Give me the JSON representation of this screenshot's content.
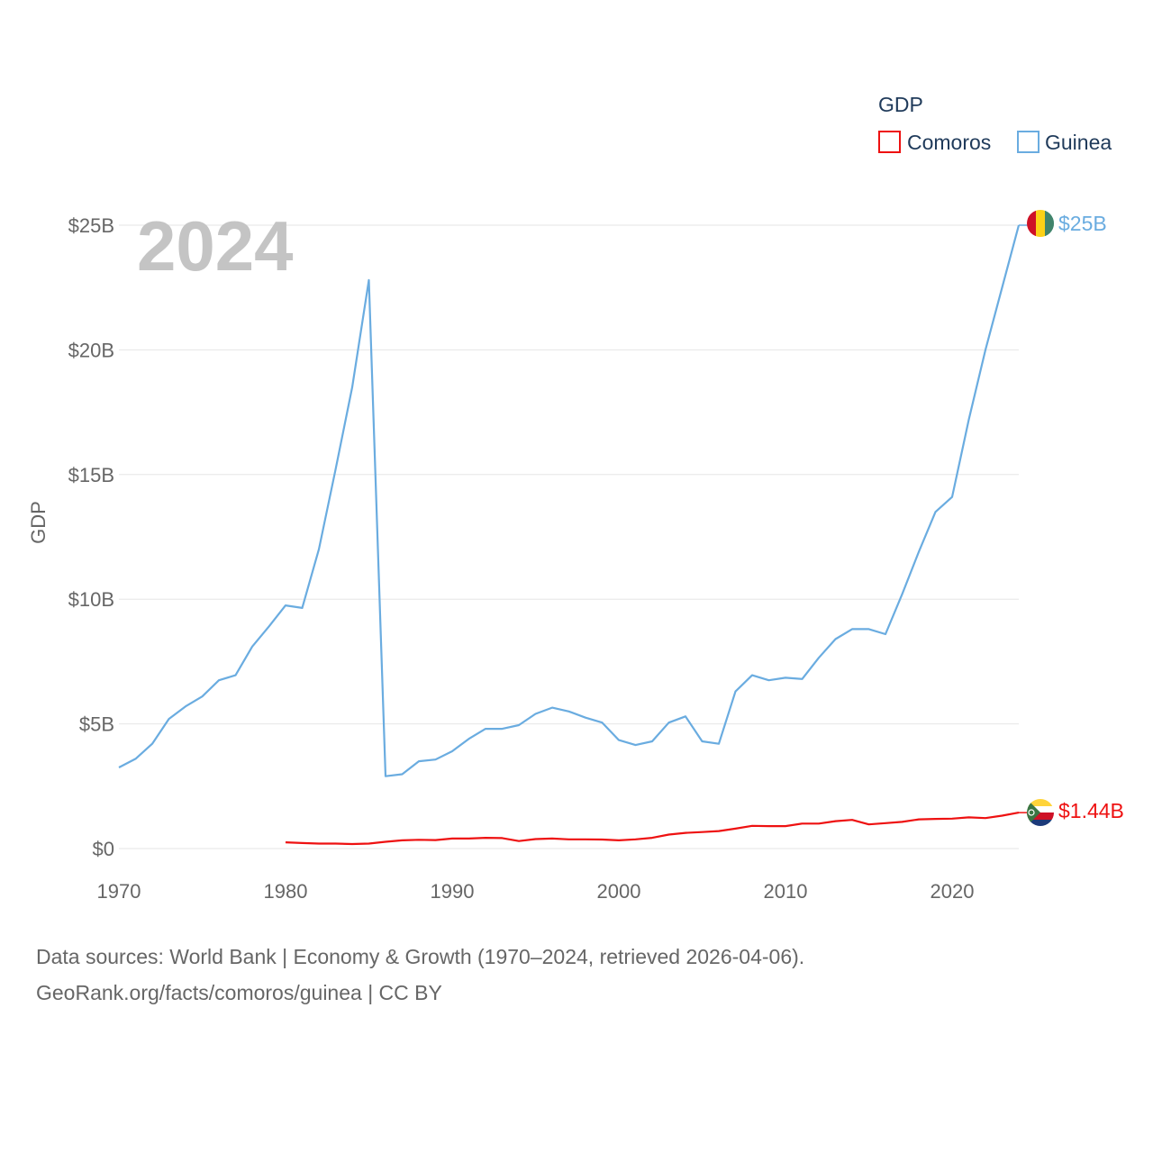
{
  "chart_data": {
    "type": "line",
    "legend_title": "GDP",
    "ylabel": "GDP",
    "year_label": "2024",
    "xlim": [
      1970,
      2024
    ],
    "ylim": [
      0,
      25
    ],
    "x_ticks": [
      1970,
      1980,
      1990,
      2000,
      2010,
      2020
    ],
    "x_tick_labels": [
      "1970",
      "1980",
      "1990",
      "2000",
      "2010",
      "2020"
    ],
    "y_ticks": [
      0,
      5,
      10,
      15,
      20,
      25
    ],
    "y_tick_labels": [
      "$0",
      "$5B",
      "$10B",
      "$15B",
      "$20B",
      "$25B"
    ],
    "legend_position": "top-right",
    "series": [
      {
        "name": "Comoros",
        "color": "#ee1111",
        "end_label": "$1.44B",
        "x": [
          1980,
          1981,
          1982,
          1983,
          1984,
          1985,
          1986,
          1987,
          1988,
          1989,
          1990,
          1991,
          1992,
          1993,
          1994,
          1995,
          1996,
          1997,
          1998,
          1999,
          2000,
          2001,
          2002,
          2003,
          2004,
          2005,
          2006,
          2007,
          2008,
          2009,
          2010,
          2011,
          2012,
          2013,
          2014,
          2015,
          2016,
          2017,
          2018,
          2019,
          2020,
          2021,
          2022,
          2023,
          2024
        ],
        "values": [
          0.25,
          0.22,
          0.2,
          0.2,
          0.18,
          0.2,
          0.27,
          0.33,
          0.35,
          0.34,
          0.4,
          0.4,
          0.43,
          0.42,
          0.3,
          0.38,
          0.4,
          0.37,
          0.37,
          0.36,
          0.33,
          0.37,
          0.43,
          0.56,
          0.63,
          0.66,
          0.7,
          0.8,
          0.91,
          0.9,
          0.9,
          1.0,
          1.0,
          1.1,
          1.15,
          0.97,
          1.02,
          1.07,
          1.17,
          1.19,
          1.2,
          1.25,
          1.22,
          1.32,
          1.44
        ]
      },
      {
        "name": "Guinea",
        "color": "#6aace0",
        "end_label": "$25B",
        "x": [
          1970,
          1971,
          1972,
          1973,
          1974,
          1975,
          1976,
          1977,
          1978,
          1979,
          1980,
          1981,
          1982,
          1983,
          1984,
          1985,
          1986,
          1987,
          1988,
          1989,
          1990,
          1991,
          1992,
          1993,
          1994,
          1995,
          1996,
          1997,
          1998,
          1999,
          2000,
          2001,
          2002,
          2003,
          2004,
          2005,
          2006,
          2007,
          2008,
          2009,
          2010,
          2011,
          2012,
          2013,
          2014,
          2015,
          2016,
          2017,
          2018,
          2019,
          2020,
          2021,
          2022,
          2023,
          2024
        ],
        "values": [
          3.25,
          3.6,
          4.2,
          5.2,
          5.7,
          6.1,
          6.75,
          6.95,
          8.1,
          8.9,
          9.75,
          9.65,
          12.0,
          15.2,
          18.5,
          22.8,
          2.9,
          2.98,
          3.5,
          3.57,
          3.9,
          4.4,
          4.8,
          4.8,
          4.95,
          5.4,
          5.65,
          5.5,
          5.25,
          5.05,
          4.35,
          4.15,
          4.3,
          5.05,
          5.3,
          4.3,
          4.2,
          6.3,
          6.95,
          6.75,
          6.85,
          6.8,
          7.65,
          8.4,
          8.8,
          8.8,
          8.6,
          10.2,
          11.9,
          13.5,
          14.1,
          17.2,
          20.0,
          22.5,
          25.0
        ]
      }
    ]
  },
  "footer": {
    "line1": "Data sources: World Bank | Economy & Growth (1970–2024, retrieved 2026-04-06).",
    "line2": "GeoRank.org/facts/comoros/guinea | CC BY"
  }
}
